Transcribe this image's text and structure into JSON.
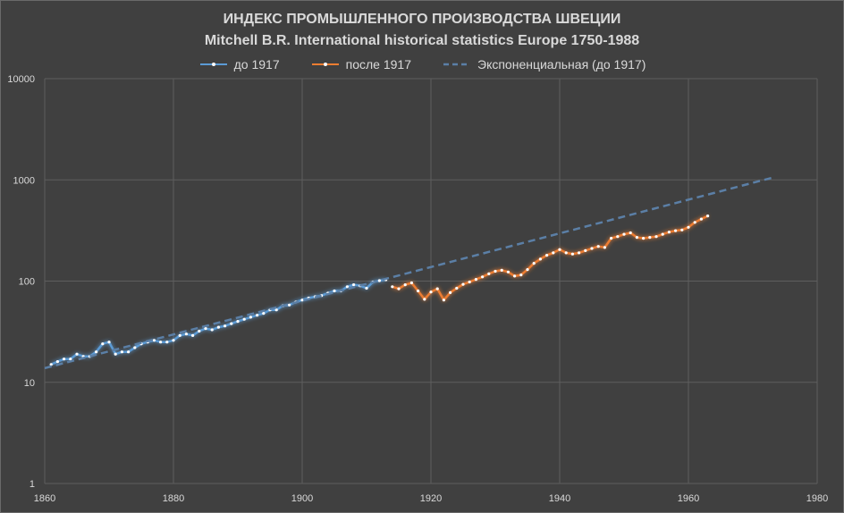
{
  "chart_data": {
    "type": "line",
    "title": "ИНДЕКС ПРОМЫШЛЕННОГО ПРОИЗВОДСТВА ШВЕЦИИ",
    "subtitle": "Mitchell B.R. International historical statistics Europe 1750-1988",
    "xlim": [
      1860,
      1980
    ],
    "ylim": [
      1,
      10000
    ],
    "yscale": "log",
    "grid": true,
    "legend_position": "top",
    "x_ticks": [
      "1860",
      "1880",
      "1900",
      "1920",
      "1940",
      "1960",
      "1980"
    ],
    "y_ticks": [
      "1",
      "10",
      "100",
      "1000",
      "10000"
    ],
    "series": [
      {
        "name": "до 1917",
        "color": "#5b9bd5",
        "x": [
          1861,
          1862,
          1863,
          1864,
          1865,
          1866,
          1867,
          1868,
          1869,
          1870,
          1871,
          1872,
          1873,
          1874,
          1875,
          1876,
          1877,
          1878,
          1879,
          1880,
          1881,
          1882,
          1883,
          1884,
          1885,
          1886,
          1887,
          1888,
          1889,
          1890,
          1891,
          1892,
          1893,
          1894,
          1895,
          1896,
          1897,
          1898,
          1899,
          1900,
          1901,
          1902,
          1903,
          1904,
          1905,
          1906,
          1907,
          1908,
          1909,
          1910,
          1911,
          1912,
          1913
        ],
        "y": [
          15,
          16,
          17,
          17,
          19,
          18,
          18,
          20,
          24,
          25,
          19,
          20,
          20,
          22,
          24,
          25,
          26,
          25,
          25,
          26,
          29,
          30,
          29,
          32,
          34,
          33,
          35,
          36,
          38,
          40,
          42,
          44,
          46,
          48,
          52,
          52,
          57,
          58,
          62,
          65,
          68,
          70,
          72,
          76,
          80,
          80,
          88,
          92,
          90,
          85,
          98,
          101,
          103
        ]
      },
      {
        "name": "после 1917",
        "color": "#ed7d31",
        "x": [
          1914,
          1915,
          1916,
          1917,
          1918,
          1919,
          1920,
          1921,
          1922,
          1923,
          1924,
          1925,
          1926,
          1927,
          1928,
          1929,
          1930,
          1931,
          1932,
          1933,
          1934,
          1935,
          1936,
          1937,
          1938,
          1939,
          1940,
          1941,
          1942,
          1943,
          1944,
          1945,
          1946,
          1947,
          1948,
          1949,
          1950,
          1951,
          1952,
          1953,
          1954,
          1955,
          1956,
          1957,
          1958,
          1959,
          1960,
          1961,
          1962,
          1963
        ],
        "y": [
          88,
          84,
          92,
          96,
          80,
          66,
          78,
          84,
          65,
          77,
          85,
          93,
          98,
          104,
          110,
          118,
          125,
          128,
          123,
          112,
          115,
          130,
          150,
          165,
          180,
          190,
          205,
          190,
          185,
          190,
          200,
          210,
          220,
          215,
          265,
          275,
          290,
          300,
          270,
          265,
          270,
          275,
          290,
          305,
          315,
          320,
          340,
          380,
          410,
          440
        ]
      },
      {
        "name": "Экспоненциальная (до 1917)",
        "color": "#5b7fa6",
        "dashed": true,
        "x": [
          1860,
          1973
        ],
        "y": [
          13.8,
          1050
        ]
      }
    ]
  }
}
